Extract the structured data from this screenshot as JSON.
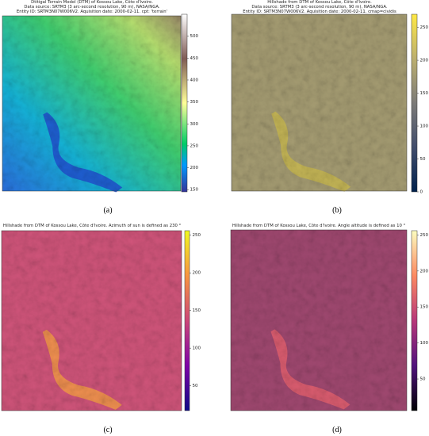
{
  "panels": [
    {
      "title": [
        "Dtitigal Terrain Model (DTM) of Kossou Lake, Côte d'Ivoire.",
        "Data source: SRTM3 (3 arc-second resolution, 90 m), NASA/NGA.",
        "Entity ID: SRTM3N07W006V2. Aquisition date: 2000-02-11. cpt: 'terrain'"
      ],
      "colorbar": {
        "ylim": [
          145,
          550
        ],
        "yticks": [
          150,
          200,
          250,
          300,
          350,
          400,
          450,
          500
        ]
      },
      "label": "(a)"
    },
    {
      "title": [
        "Hillshade from DTM of Kossou Lake, Côte d'Ivoire.",
        "Data source: SRTM3 (3 arc-second resolution, 90 m), NASA/NGA.",
        "Entity ID: SRTM3N07W006V2. Aquisition date: 2000-02-11. cmap=cividis"
      ],
      "colorbar": {
        "ylim": [
          0,
          270
        ],
        "yticks": [
          0,
          50,
          100,
          150,
          200,
          250
        ]
      },
      "label": "(b)"
    },
    {
      "title": [
        "Hillshade from DTM of Kossou Lake, Côte d'Ivoire. Azimuth of sun is defined as 230 °"
      ],
      "colorbar": {
        "ylim": [
          17,
          256
        ],
        "yticks": [
          50,
          100,
          150,
          200,
          250
        ]
      },
      "label": "(c)"
    },
    {
      "title": [
        "Hillshade from DTM of Kossou Lake, Côte d'Ivoire. Angle altitude is defined as 10 °"
      ],
      "colorbar": {
        "ylim": [
          6,
          256
        ],
        "yticks": [
          50,
          100,
          150,
          200,
          250
        ]
      },
      "label": "(d)"
    }
  ]
}
